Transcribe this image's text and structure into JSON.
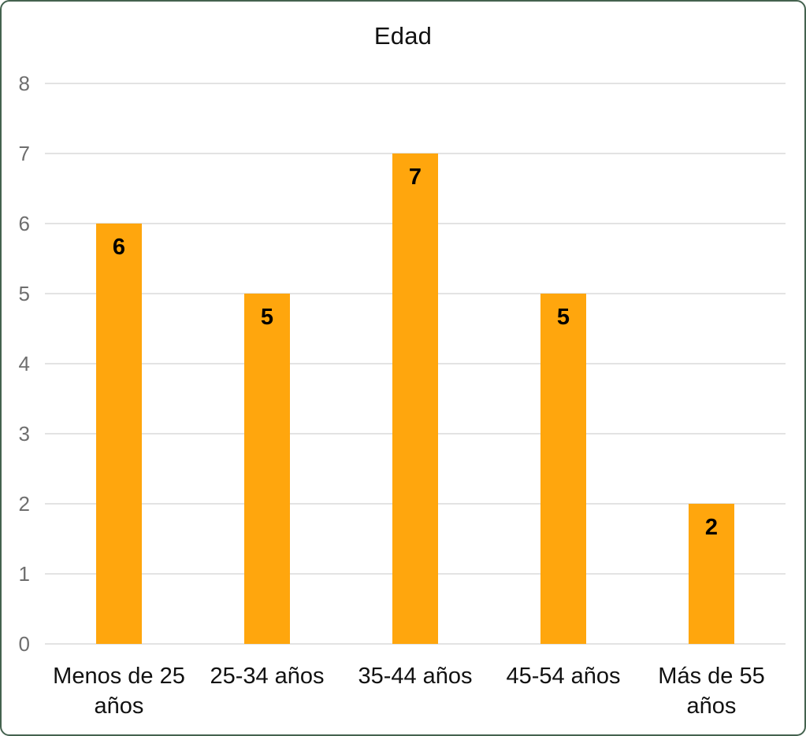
{
  "chart_data": {
    "type": "bar",
    "title": "Edad",
    "categories": [
      "Menos de 25 años",
      "25-34 años",
      "35-44 años",
      "45-54 años",
      "Más de 55 años"
    ],
    "values": [
      6,
      5,
      7,
      5,
      2
    ],
    "xlabel": "",
    "ylabel": "",
    "ylim": [
      0,
      8
    ],
    "yticks": [
      0,
      1,
      2,
      3,
      4,
      5,
      6,
      7,
      8
    ],
    "grid": true,
    "legend_position": "none",
    "value_labels_shown": true,
    "colors": {
      "bar": "#FFA60D",
      "value_label": "#000000",
      "title_text": "#111111",
      "category_label": "#111111",
      "axis_tick_label": "#6E6E6E",
      "gridline": "#E3E3E3",
      "frame_border": "#44624F",
      "background": "#FFFFFF"
    }
  }
}
